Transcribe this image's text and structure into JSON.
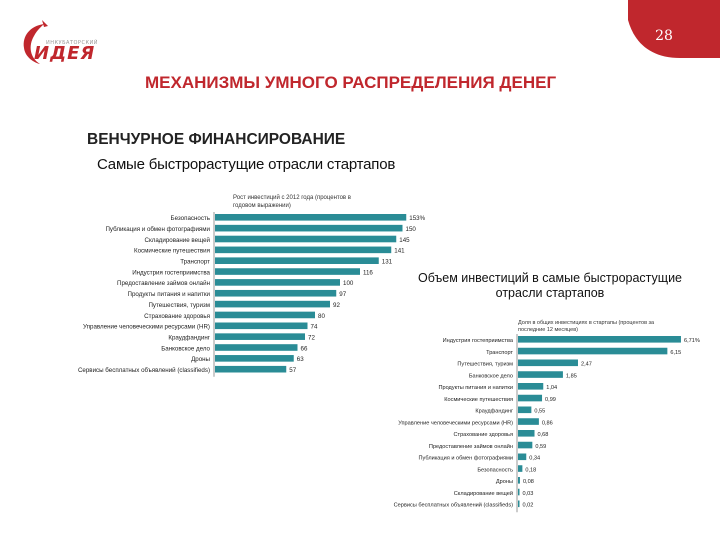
{
  "logo": {
    "small_text": "ИНКУБАТОРСКИЙ",
    "big_text": "ИДЕЯ"
  },
  "page_number": "28",
  "slide_title": "МЕХАНИЗМЫ УМНОГО РАСПРЕДЕЛЕНИЯ ДЕНЕГ",
  "section_title": "ВЕНЧУРНОЕ ФИНАНСИРОВАНИЕ",
  "colors": {
    "bar": "#2a8c96",
    "brand_red": "#c0272d",
    "axis": "#555555"
  },
  "chart_data": [
    {
      "type": "bar",
      "orientation": "horizontal",
      "title": "Самые быстрорастущие отрасли стартапов",
      "note": "Рост инвестиций с 2012 года (процентов в годовом выражении)",
      "categories": [
        "Безопасность",
        "Публикация и обмен фотографиями",
        "Складирование вещей",
        "Космические путешествия",
        "Транспорт",
        "Индустрия гостеприимства",
        "Предоставление займов онлайн",
        "Продукты питания и напитки",
        "Путешествия, туризм",
        "Страхование здоровья",
        "Управление человеческими ресурсами (HR)",
        "Краудфандинг",
        "Банковское дело",
        "Дроны",
        "Сервисы бесплатных объявлений (classifieds)"
      ],
      "values": [
        153,
        150,
        145,
        141,
        131,
        116,
        100,
        97,
        92,
        80,
        74,
        72,
        66,
        63,
        57
      ],
      "value_labels": [
        "153%",
        "150",
        "145",
        "141",
        "131",
        "116",
        "100",
        "97",
        "92",
        "80",
        "74",
        "72",
        "66",
        "63",
        "57"
      ],
      "xlim": [
        0,
        160
      ]
    },
    {
      "type": "bar",
      "orientation": "horizontal",
      "title": "Объем инвестиций в самые быстрорастущие отрасли стартапов",
      "note": "Доля в общих инвестициях в стартапы (процентов за последние 12 месяцев)",
      "categories": [
        "Индустрия гостеприимства",
        "Транспорт",
        "Путешествия, туризм",
        "Банковское дело",
        "Продукты питания и напитки",
        "Космические путешествия",
        "Краудфандинг",
        "Управление человеческими ресурсами (HR)",
        "Страхование здоровья",
        "Предоставление займов онлайн",
        "Публикация и обмен фотографиями",
        "Безопасность",
        "Дроны",
        "Складирование вещей",
        "Сервисы бесплатных объявлений (classifieds)"
      ],
      "values": [
        6.71,
        6.15,
        2.47,
        1.85,
        1.04,
        0.99,
        0.55,
        0.86,
        0.68,
        0.59,
        0.34,
        0.18,
        0.08,
        0.03,
        0.02
      ],
      "value_labels": [
        "6,71%",
        "6,15",
        "2,47",
        "1,85",
        "1,04",
        "0,99",
        "0,55",
        "0,86",
        "0,68",
        "0,59",
        "0,34",
        "0,18",
        "0,08",
        "0,03",
        "0,02"
      ],
      "xlim": [
        0,
        7
      ]
    }
  ]
}
